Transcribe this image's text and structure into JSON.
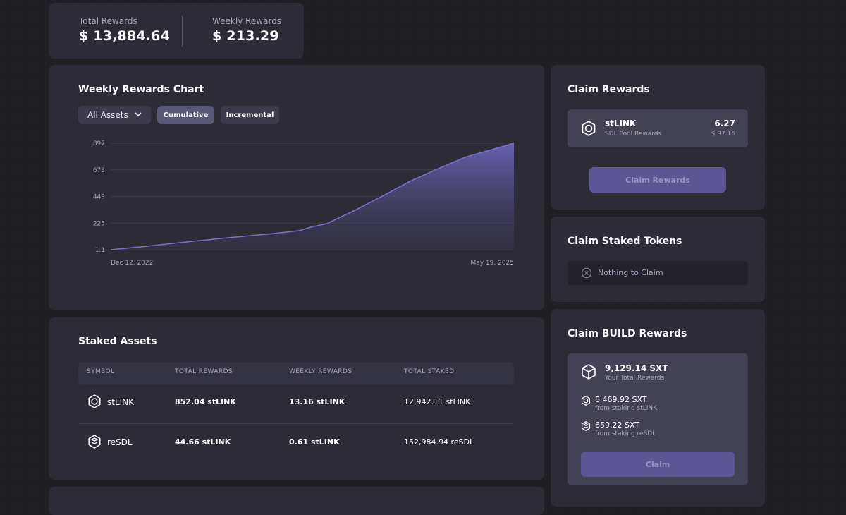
{
  "summary": {
    "total_label": "Total Rewards",
    "total_value": "$ 13,884.64",
    "weekly_label": "Weekly Rewards",
    "weekly_value": "$ 213.29"
  },
  "rewards_chart": {
    "title": "Weekly Rewards Chart",
    "asset_filter": "All Assets",
    "mode_buttons": [
      "Cumulative",
      "Incremental"
    ],
    "active_mode": "Cumulative"
  },
  "chart_data": {
    "type": "area",
    "title": "Weekly Rewards Chart",
    "y_ticks": [
      "897",
      "673",
      "449",
      "225",
      "1.1"
    ],
    "y_tick_values": [
      897,
      673,
      449,
      225,
      1.1
    ],
    "ylim": [
      1.1,
      897
    ],
    "x_tick_labels": [
      "Dec 12, 2022",
      "May 19, 2025"
    ],
    "x_range": [
      "2022-12-12",
      "2025-05-19"
    ],
    "grid": true,
    "series": [
      {
        "color": "#7a72cf",
        "points": [
          [
            "2022-12-12",
            1.1
          ],
          [
            "2023-03-01",
            30
          ],
          [
            "2023-06-01",
            68
          ],
          [
            "2023-09-01",
            103
          ],
          [
            "2023-12-01",
            135
          ],
          [
            "2024-02-01",
            162
          ],
          [
            "2024-03-01",
            195
          ],
          [
            "2024-04-01",
            220
          ],
          [
            "2024-06-01",
            330
          ],
          [
            "2024-08-01",
            450
          ],
          [
            "2024-10-01",
            575
          ],
          [
            "2024-12-01",
            680
          ],
          [
            "2025-02-01",
            780
          ],
          [
            "2025-04-01",
            845
          ],
          [
            "2025-05-19",
            897
          ]
        ]
      }
    ]
  },
  "staked_assets": {
    "title": "Staked Assets",
    "columns": [
      "SYMBOL",
      "TOTAL REWARDS",
      "WEEKLY REWARDS",
      "TOTAL STAKED"
    ],
    "rows": [
      {
        "icon": "stlink-gear-icon",
        "symbol": "stLINK",
        "total_rewards": "852.04 stLINK",
        "weekly_rewards": "13.16 stLINK",
        "total_staked": "12,942.11 stLINK"
      },
      {
        "icon": "resdl-icon",
        "symbol": "reSDL",
        "total_rewards": "44.66 stLINK",
        "weekly_rewards": "0.61 stLINK",
        "total_staked": "152,984.94 reSDL"
      }
    ]
  },
  "claim_rewards": {
    "title": "Claim Rewards",
    "item_symbol": "stLINK",
    "item_sub": "SDL Pool Rewards",
    "item_amount": "6.27",
    "item_usd": "$ 97.16",
    "button_label": "Claim Rewards"
  },
  "claim_staked_tokens": {
    "title": "Claim Staked Tokens",
    "empty_text": "Nothing to Claim"
  },
  "claim_build": {
    "title": "Claim BUILD Rewards",
    "total_amount": "9,129.14 SXT",
    "total_label": "Your Total Rewards",
    "items": [
      {
        "amount": "8,469.92 SXT",
        "source": "from staking stLINK"
      },
      {
        "amount": "659.22 SXT",
        "source": "from staking reSDL"
      }
    ],
    "button_label": "Claim"
  },
  "colors": {
    "background": "#1e1d22",
    "card": "#2c2b36",
    "accent": "#5c5596",
    "chart_line": "#7a72cf"
  }
}
